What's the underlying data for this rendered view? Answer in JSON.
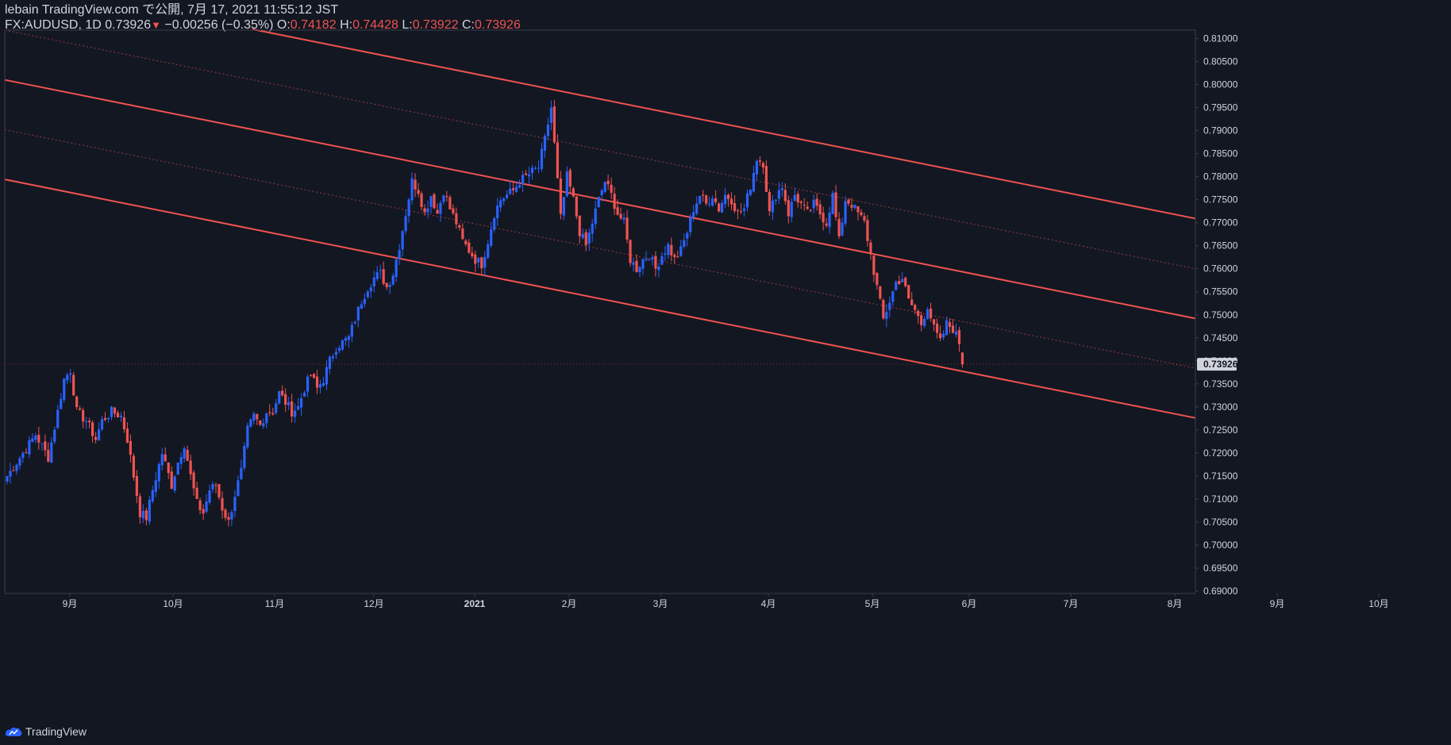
{
  "header": {
    "published": "lebain TradingView.com で公開, 7月 17, 2021 11:55:12 JST",
    "symbol": "FX:AUDUSD, 1D",
    "last": "0.73926",
    "down_marker": "▼",
    "change": "−0.00256 (−0.35%)",
    "o_label": "O:",
    "o_value": "0.74182",
    "h_label": "H:",
    "h_value": "0.74428",
    "l_label": "L:",
    "l_value": "0.73922",
    "c_label": "C:",
    "c_value": "0.73926"
  },
  "footer": {
    "brand": "TradingView",
    "logo_icon": "tradingview-cloud-logo-icon"
  },
  "colors": {
    "background": "#131722",
    "up": "#2962ff",
    "down": "#ef5350",
    "channel": "#f05350",
    "axis_text": "#d1d4dc",
    "axis_line": "#3a3e4a",
    "price_tag_bg": "#d1d4dc",
    "price_tag_text": "#131722"
  },
  "chart_data": {
    "type": "candlestick",
    "x_axis_labels": [
      "9月",
      "10月",
      "11月",
      "12月",
      "2021",
      "2月",
      "3月",
      "4月",
      "5月",
      "6月",
      "7月",
      "8月",
      "9月",
      "10月"
    ],
    "y_axis_labels": [
      "0.81000",
      "0.80500",
      "0.80000",
      "0.79500",
      "0.79000",
      "0.78500",
      "0.78000",
      "0.77500",
      "0.77000",
      "0.76500",
      "0.76000",
      "0.75500",
      "0.75000",
      "0.74500",
      "0.74000",
      "0.73500",
      "0.73000",
      "0.72500",
      "0.72000",
      "0.71500",
      "0.71000",
      "0.70500",
      "0.70000",
      "0.69500",
      "0.69000"
    ],
    "ylim": [
      0.6895,
      0.8118
    ],
    "last_price_label": "0.73926",
    "close_keypoints": [
      [
        0,
        0.715
      ],
      [
        5,
        0.72
      ],
      [
        9,
        0.724
      ],
      [
        13,
        0.719
      ],
      [
        16,
        0.729
      ],
      [
        18,
        0.736
      ],
      [
        20,
        0.738
      ],
      [
        22,
        0.729
      ],
      [
        25,
        0.727
      ],
      [
        28,
        0.723
      ],
      [
        30,
        0.727
      ],
      [
        33,
        0.729
      ],
      [
        36,
        0.728
      ],
      [
        38,
        0.723
      ],
      [
        40,
        0.715
      ],
      [
        42,
        0.707
      ],
      [
        44,
        0.706
      ],
      [
        46,
        0.712
      ],
      [
        49,
        0.72
      ],
      [
        52,
        0.713
      ],
      [
        54,
        0.718
      ],
      [
        56,
        0.722
      ],
      [
        58,
        0.715
      ],
      [
        60,
        0.709
      ],
      [
        62,
        0.707
      ],
      [
        64,
        0.712
      ],
      [
        66,
        0.713
      ],
      [
        68,
        0.708
      ],
      [
        70,
        0.705
      ],
      [
        72,
        0.711
      ],
      [
        74,
        0.716
      ],
      [
        76,
        0.725
      ],
      [
        78,
        0.728
      ],
      [
        80,
        0.726
      ],
      [
        82,
        0.729
      ],
      [
        84,
        0.729
      ],
      [
        86,
        0.733
      ],
      [
        88,
        0.731
      ],
      [
        90,
        0.729
      ],
      [
        92,
        0.73
      ],
      [
        94,
        0.734
      ],
      [
        96,
        0.737
      ],
      [
        98,
        0.734
      ],
      [
        100,
        0.736
      ],
      [
        102,
        0.74
      ],
      [
        104,
        0.743
      ],
      [
        106,
        0.744
      ],
      [
        108,
        0.745
      ],
      [
        110,
        0.749
      ],
      [
        112,
        0.753
      ],
      [
        114,
        0.756
      ],
      [
        116,
        0.758
      ],
      [
        118,
        0.759
      ],
      [
        120,
        0.756
      ],
      [
        122,
        0.759
      ],
      [
        124,
        0.765
      ],
      [
        126,
        0.772
      ],
      [
        128,
        0.779
      ],
      [
        130,
        0.777
      ],
      [
        132,
        0.772
      ],
      [
        134,
        0.776
      ],
      [
        136,
        0.772
      ],
      [
        138,
        0.777
      ],
      [
        140,
        0.773
      ],
      [
        142,
        0.77
      ],
      [
        144,
        0.766
      ],
      [
        146,
        0.764
      ],
      [
        148,
        0.762
      ],
      [
        150,
        0.761
      ],
      [
        152,
        0.766
      ],
      [
        154,
        0.772
      ],
      [
        156,
        0.775
      ],
      [
        158,
        0.776
      ],
      [
        160,
        0.777
      ],
      [
        162,
        0.779
      ],
      [
        164,
        0.78
      ],
      [
        166,
        0.781
      ],
      [
        168,
        0.782
      ],
      [
        170,
        0.788
      ],
      [
        172,
        0.795
      ],
      [
        173,
        0.787
      ],
      [
        175,
        0.771
      ],
      [
        177,
        0.78
      ],
      [
        179,
        0.775
      ],
      [
        181,
        0.768
      ],
      [
        183,
        0.765
      ],
      [
        185,
        0.77
      ],
      [
        187,
        0.775
      ],
      [
        189,
        0.779
      ],
      [
        191,
        0.776
      ],
      [
        193,
        0.772
      ],
      [
        195,
        0.77
      ],
      [
        197,
        0.762
      ],
      [
        199,
        0.76
      ],
      [
        201,
        0.762
      ],
      [
        203,
        0.763
      ],
      [
        205,
        0.76
      ],
      [
        207,
        0.763
      ],
      [
        209,
        0.765
      ],
      [
        211,
        0.762
      ],
      [
        213,
        0.764
      ],
      [
        215,
        0.768
      ],
      [
        217,
        0.773
      ],
      [
        219,
        0.776
      ],
      [
        221,
        0.774
      ],
      [
        223,
        0.776
      ],
      [
        225,
        0.773
      ],
      [
        227,
        0.776
      ],
      [
        229,
        0.775
      ],
      [
        231,
        0.772
      ],
      [
        233,
        0.773
      ],
      [
        235,
        0.778
      ],
      [
        237,
        0.784
      ],
      [
        239,
        0.783
      ],
      [
        241,
        0.772
      ],
      [
        243,
        0.776
      ],
      [
        245,
        0.778
      ],
      [
        247,
        0.772
      ],
      [
        249,
        0.776
      ],
      [
        251,
        0.774
      ],
      [
        253,
        0.772
      ],
      [
        255,
        0.774
      ],
      [
        257,
        0.772
      ],
      [
        259,
        0.77
      ],
      [
        261,
        0.776
      ],
      [
        263,
        0.766
      ],
      [
        265,
        0.775
      ],
      [
        267,
        0.774
      ],
      [
        269,
        0.772
      ],
      [
        271,
        0.77
      ],
      [
        273,
        0.763
      ],
      [
        275,
        0.756
      ],
      [
        277,
        0.749
      ],
      [
        279,
        0.753
      ],
      [
        281,
        0.757
      ],
      [
        283,
        0.758
      ],
      [
        285,
        0.753
      ],
      [
        287,
        0.751
      ],
      [
        289,
        0.748
      ],
      [
        291,
        0.752
      ],
      [
        293,
        0.747
      ],
      [
        295,
        0.744
      ],
      [
        297,
        0.748
      ],
      [
        299,
        0.747
      ],
      [
        301,
        0.744
      ],
      [
        302,
        0.7393
      ]
    ]
  }
}
